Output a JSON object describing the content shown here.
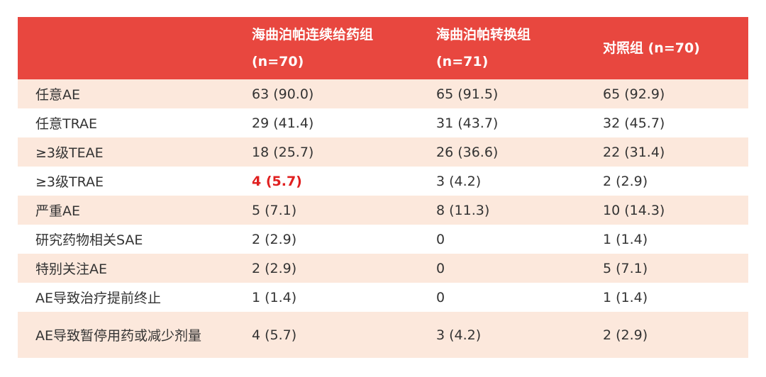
{
  "table": {
    "header": [
      {
        "lines": [
          "海曲泊帕连续给药组",
          "(n=70)"
        ]
      },
      {
        "lines": [
          "海曲泊帕转换组",
          "(n=71)"
        ]
      },
      {
        "lines": [
          "对照组 (n=70)"
        ]
      }
    ],
    "rows": [
      [
        "任意AE",
        "63 (90.0)",
        "65 (91.5)",
        "65 (92.9)"
      ],
      [
        "任意TRAE",
        "29 (41.4)",
        "31 (43.7)",
        "32 (45.7)"
      ],
      [
        "≥3级TEAE",
        "18 (25.7)",
        "26 (36.6)",
        "22 (31.4)"
      ],
      [
        "≥3级TRAE",
        "4 (5.7)",
        "3 (4.2)",
        "2 (2.9)"
      ],
      [
        "严重AE",
        "5 (7.1)",
        "8 (11.3)",
        "10 (14.3)"
      ],
      [
        "研究药物相关SAE",
        "2 (2.9)",
        "0",
        "1 (1.4)"
      ],
      [
        "特别关注AE",
        "2 (2.9)",
        "0",
        "5 (7.1)"
      ],
      [
        "AE导致治疗提前终止",
        "1 (1.4)",
        "0",
        "1 (1.4)"
      ],
      [
        "AE导致暂停用药或减少剂量",
        "4 (5.7)",
        "3 (4.2)",
        "2 (2.9)"
      ]
    ]
  }
}
